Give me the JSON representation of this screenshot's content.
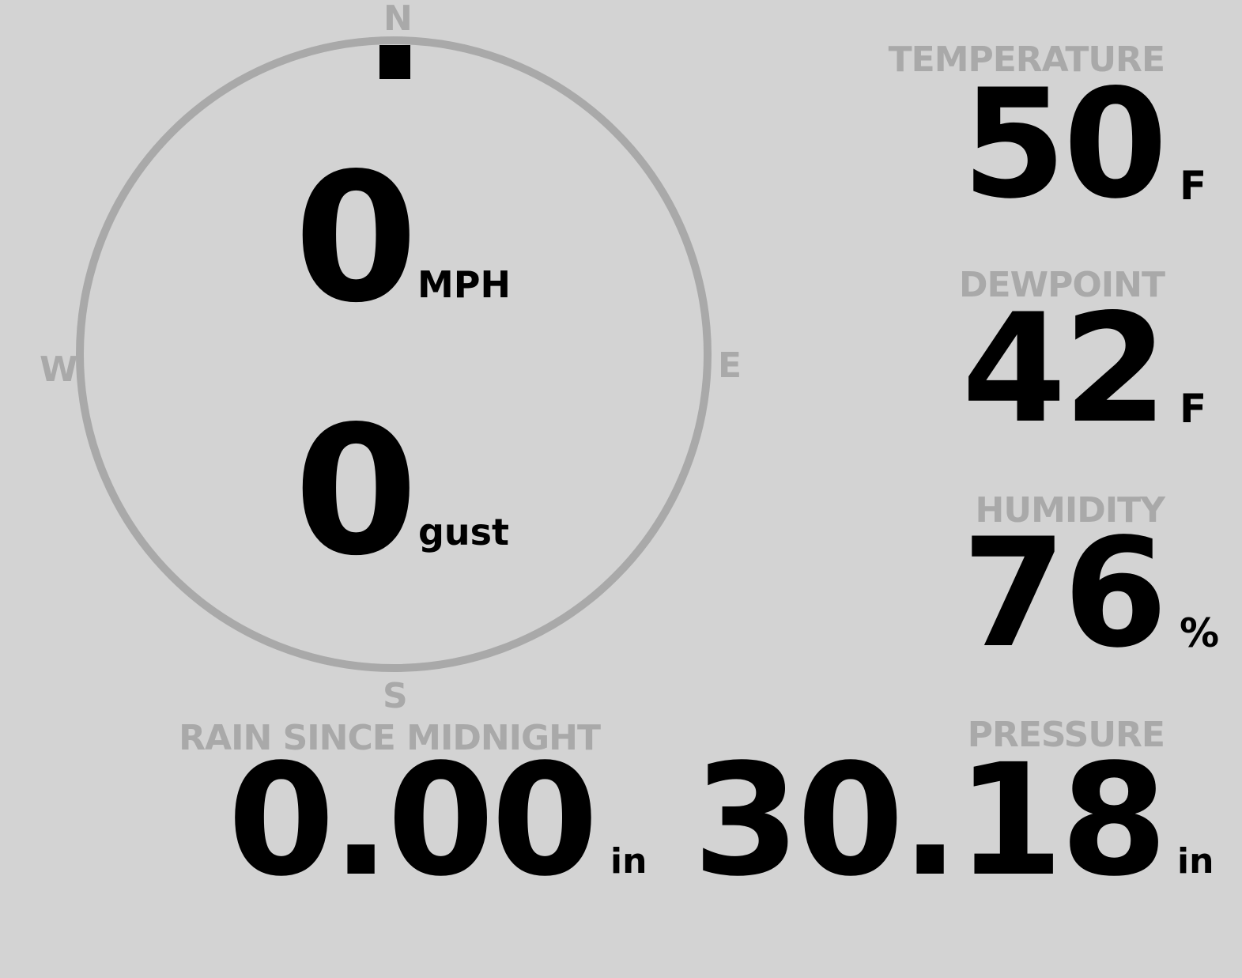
{
  "wind": {
    "speed": "0",
    "speed_unit": "MPH",
    "gust": "0",
    "gust_label": "gust",
    "direction_degrees": 0,
    "compass": {
      "n": "N",
      "e": "E",
      "s": "S",
      "w": "W"
    }
  },
  "temperature": {
    "label": "TEMPERATURE",
    "value": "50",
    "unit": "F"
  },
  "dewpoint": {
    "label": "DEWPOINT",
    "value": "42",
    "unit": "F"
  },
  "humidity": {
    "label": "HUMIDITY",
    "value": "76",
    "unit": "%"
  },
  "rain": {
    "label": "RAIN SINCE MIDNIGHT",
    "value": "0.00",
    "unit": "in"
  },
  "pressure": {
    "label": "PRESSURE",
    "value": "30.18",
    "unit": "in"
  },
  "colors": {
    "background": "#d3d3d3",
    "muted": "#a9a9a9",
    "value": "#000000"
  }
}
